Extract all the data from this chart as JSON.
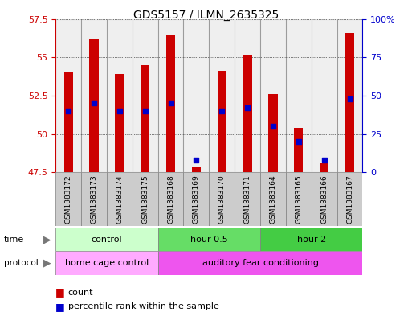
{
  "title": "GDS5157 / ILMN_2635325",
  "samples": [
    "GSM1383172",
    "GSM1383173",
    "GSM1383174",
    "GSM1383175",
    "GSM1383168",
    "GSM1383169",
    "GSM1383170",
    "GSM1383171",
    "GSM1383164",
    "GSM1383165",
    "GSM1383166",
    "GSM1383167"
  ],
  "counts": [
    54.0,
    56.2,
    53.9,
    54.5,
    56.5,
    47.8,
    54.1,
    55.1,
    52.6,
    50.4,
    48.1,
    56.6
  ],
  "percentiles": [
    40,
    45,
    40,
    40,
    45,
    8,
    40,
    42,
    30,
    20,
    8,
    48
  ],
  "ylim_left": [
    47.5,
    57.5
  ],
  "ylim_right": [
    0,
    100
  ],
  "yticks_left": [
    47.5,
    50.0,
    52.5,
    55.0,
    57.5
  ],
  "ytick_labels_left": [
    "47.5",
    "50",
    "52.5",
    "55",
    "57.5"
  ],
  "yticks_right": [
    0,
    25,
    50,
    75,
    100
  ],
  "ytick_labels_right": [
    "0",
    "25",
    "50",
    "75",
    "100%"
  ],
  "bar_color": "#cc0000",
  "dot_color": "#0000cc",
  "bar_bottom": 47.5,
  "bar_width": 0.35,
  "time_groups": [
    {
      "label": "control",
      "start": 0,
      "end": 4,
      "color": "#ccffcc"
    },
    {
      "label": "hour 0.5",
      "start": 4,
      "end": 8,
      "color": "#66dd66"
    },
    {
      "label": "hour 2",
      "start": 8,
      "end": 12,
      "color": "#44cc44"
    }
  ],
  "protocol_groups": [
    {
      "label": "home cage control",
      "start": 0,
      "end": 4,
      "color": "#ffaaff"
    },
    {
      "label": "auditory fear conditioning",
      "start": 4,
      "end": 12,
      "color": "#ee55ee"
    }
  ],
  "time_label": "time",
  "protocol_label": "protocol",
  "legend_count_label": "count",
  "legend_percentile_label": "percentile rank within the sample",
  "bg_color": "#ffffff",
  "left_tick_color": "#cc0000",
  "right_tick_color": "#0000cc",
  "sample_cell_color": "#cccccc",
  "n": 12
}
